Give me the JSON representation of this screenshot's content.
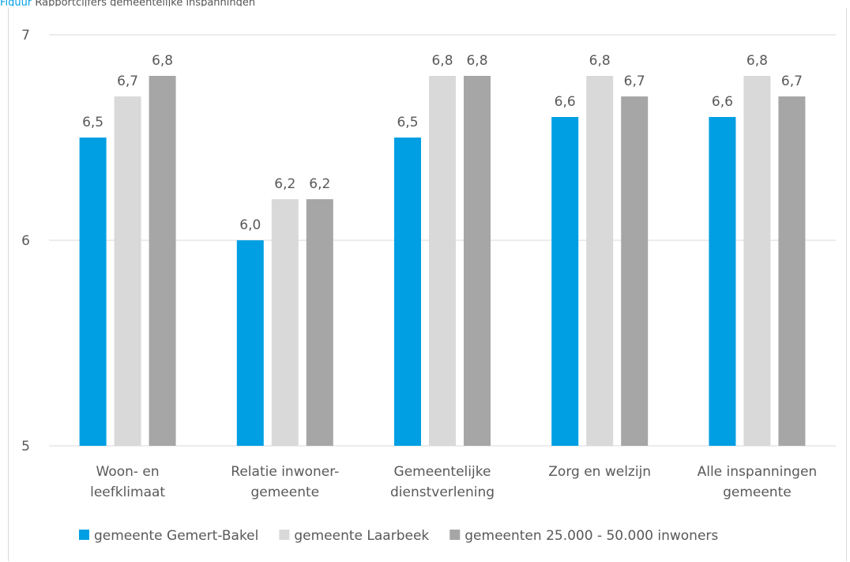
{
  "header_fragment": {
    "accent": "Figuur",
    "text": "Rapportcijfers gemeentelijke inspanningen"
  },
  "chart_data": {
    "type": "bar",
    "title": "",
    "xlabel": "",
    "ylabel": "",
    "ylim": [
      5,
      7
    ],
    "yticks": [
      "5",
      "6",
      "7"
    ],
    "grid": true,
    "legend_position": "bottom",
    "categories": [
      [
        "Woon- en",
        "leefklimaat"
      ],
      [
        "Relatie inwoner-",
        "gemeente"
      ],
      [
        "Gemeentelijke",
        "dienstverlening"
      ],
      [
        "Zorg en welzijn"
      ],
      [
        "Alle inspanningen",
        "gemeente"
      ]
    ],
    "series": [
      {
        "name": "gemeente Gemert-Bakel",
        "color": "#009fe3",
        "values": [
          6.5,
          6.0,
          6.5,
          6.6,
          6.6
        ],
        "labels": [
          "6,5",
          "6,0",
          "6,5",
          "6,6",
          "6,6"
        ]
      },
      {
        "name": "gemeente Laarbeek",
        "color": "#d9d9d9",
        "values": [
          6.7,
          6.2,
          6.8,
          6.8,
          6.8
        ],
        "labels": [
          "6,7",
          "6,2",
          "6,8",
          "6,8",
          "6,8"
        ]
      },
      {
        "name": "gemeenten 25.000 - 50.000 inwoners",
        "color": "#a6a6a6",
        "values": [
          6.8,
          6.2,
          6.8,
          6.7,
          6.7
        ],
        "labels": [
          "6,8",
          "6,2",
          "6,8",
          "6,7",
          "6,7"
        ]
      }
    ]
  }
}
